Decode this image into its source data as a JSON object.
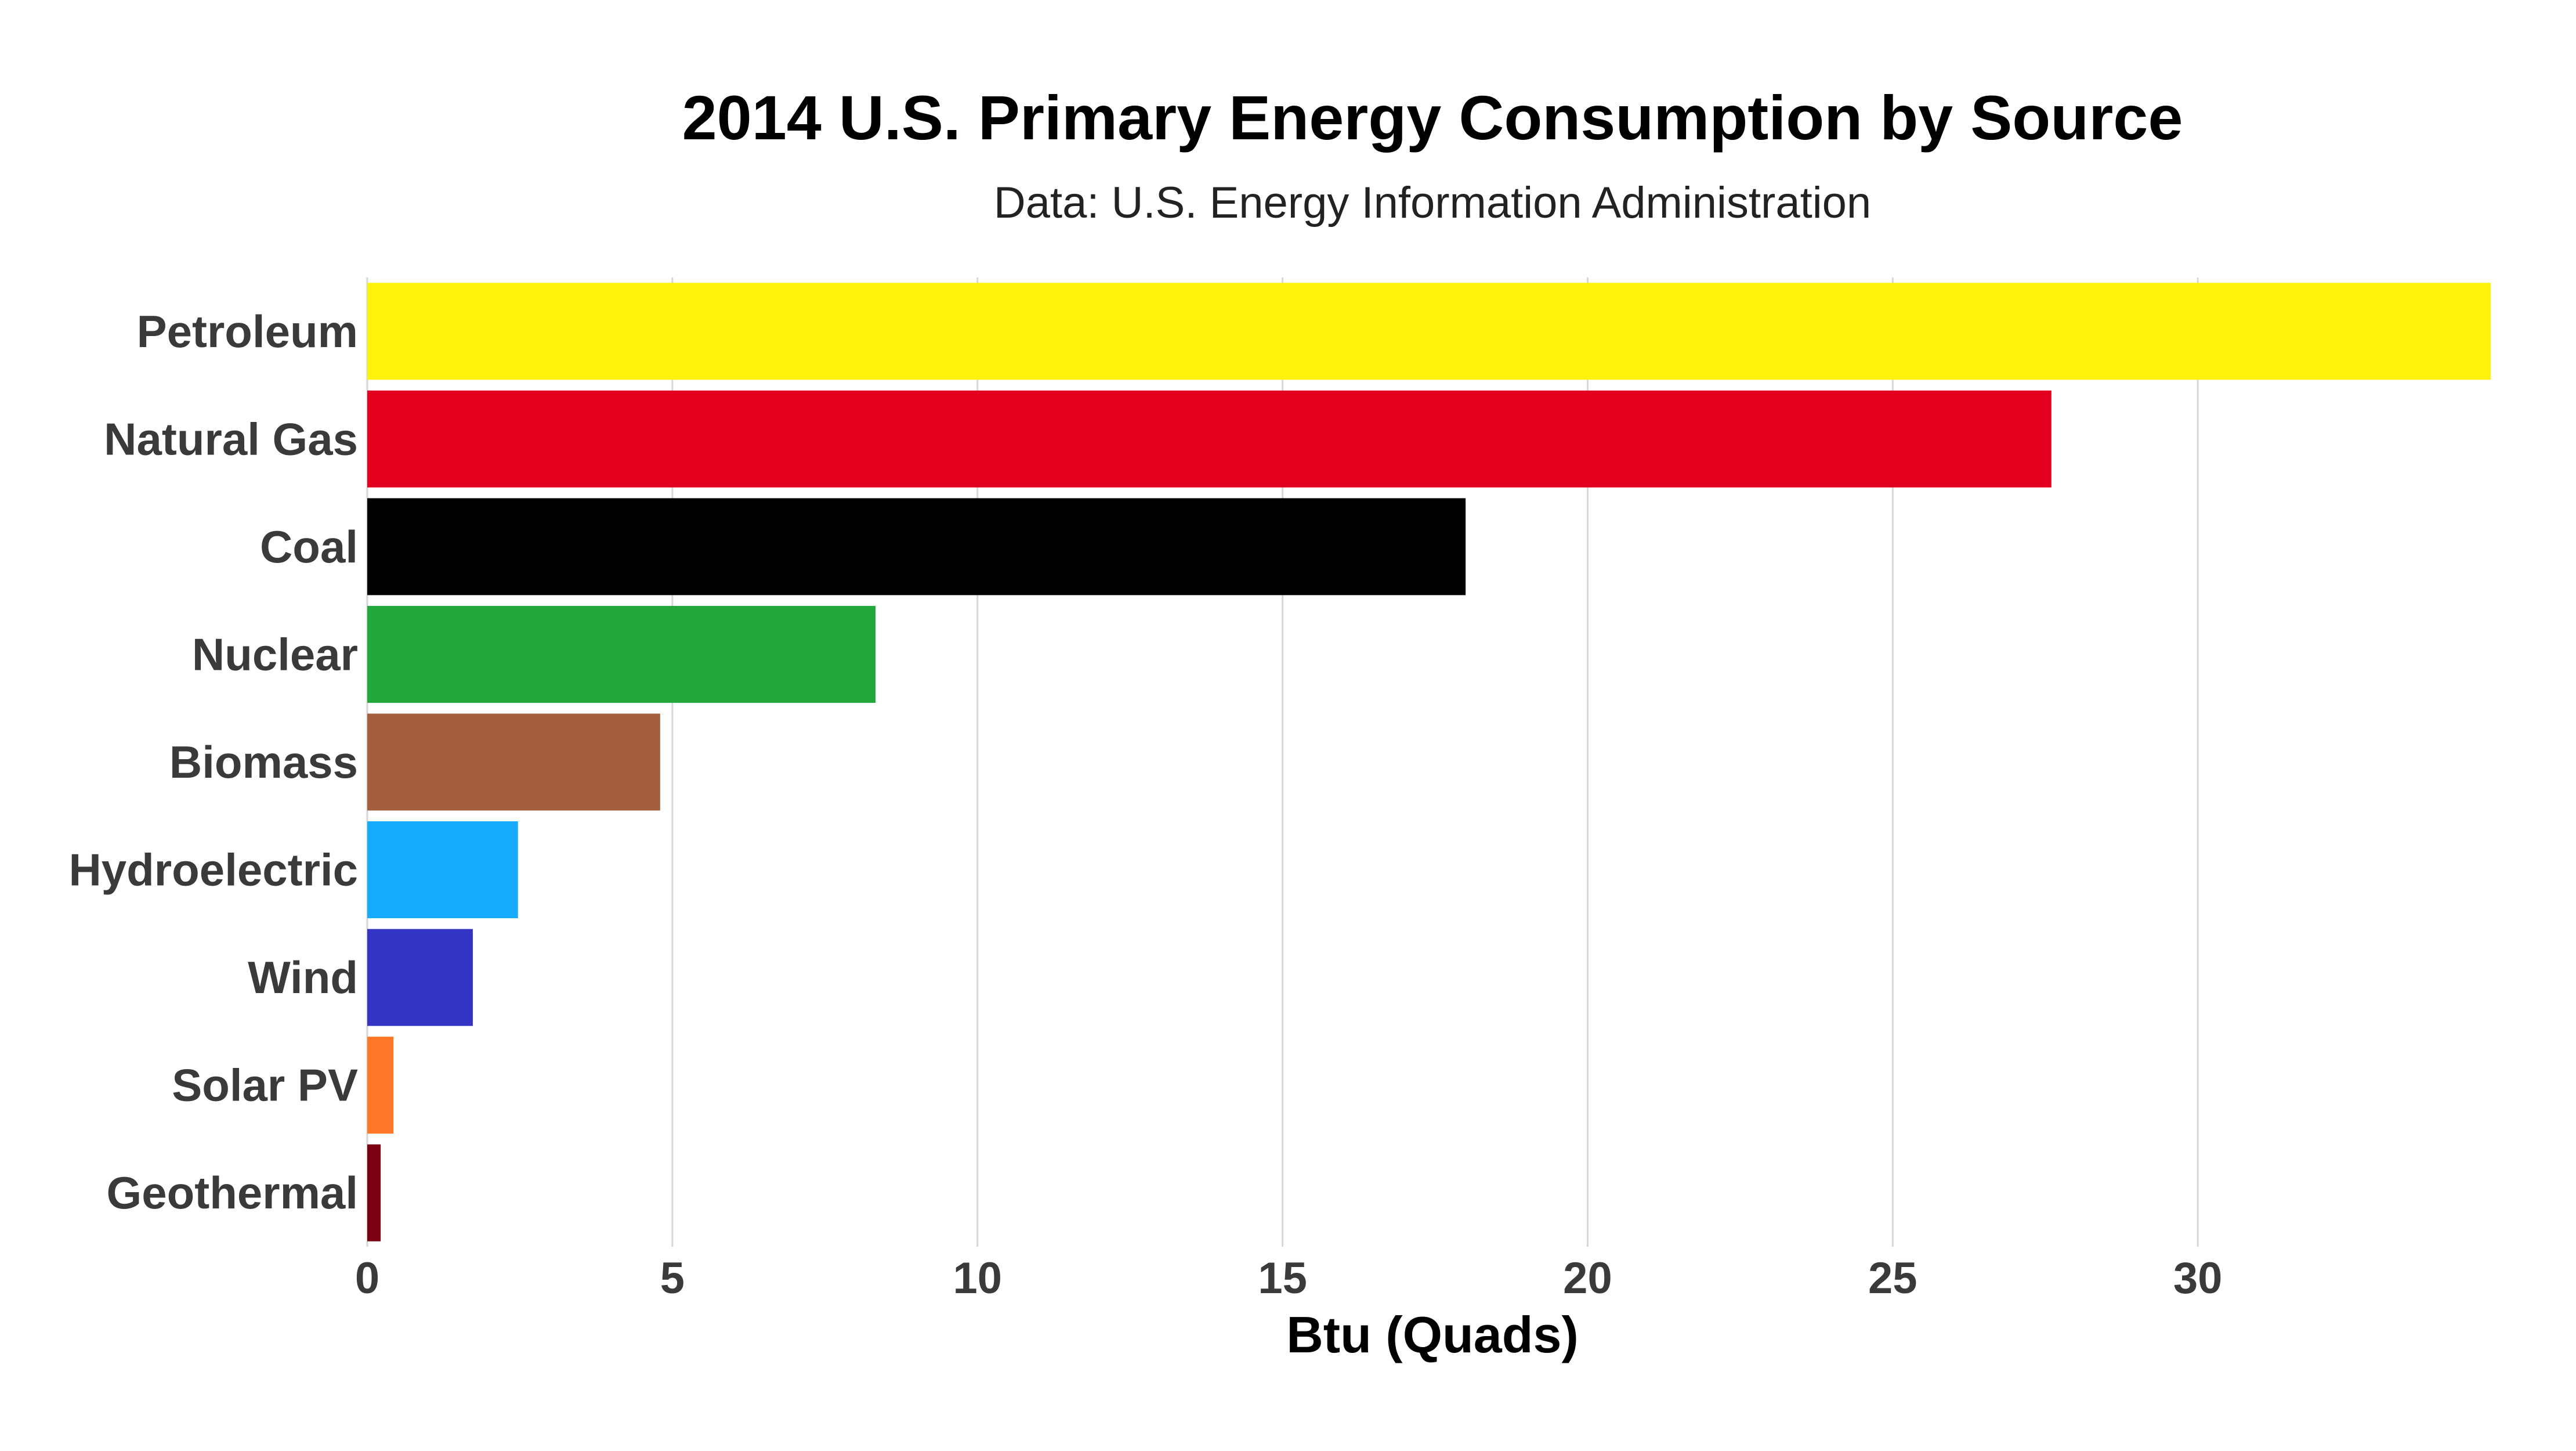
{
  "chart_data": {
    "type": "bar",
    "orientation": "horizontal",
    "title": "2014 U.S. Primary Energy Consumption by Source",
    "subtitle": "Data: U.S. Energy Information Administration",
    "xlabel": "Btu (Quads)",
    "ylabel": "",
    "xlim": [
      0,
      34.8
    ],
    "xticks": [
      0,
      5,
      10,
      15,
      20,
      25,
      30
    ],
    "grid": true,
    "legend": "none",
    "categories": [
      "Petroleum",
      "Natural Gas",
      "Coal",
      "Nuclear",
      "Biomass",
      "Hydroelectric",
      "Wind",
      "Solar PV",
      "Geothermal"
    ],
    "values": [
      34.8,
      27.6,
      18.0,
      8.33,
      4.8,
      2.47,
      1.73,
      0.43,
      0.22
    ],
    "colors": [
      "#fff20a",
      "#e3001f",
      "#000000",
      "#23a63c",
      "#a35f3e",
      "#16abfc",
      "#3333c4",
      "#ff7728",
      "#7a0012"
    ]
  }
}
